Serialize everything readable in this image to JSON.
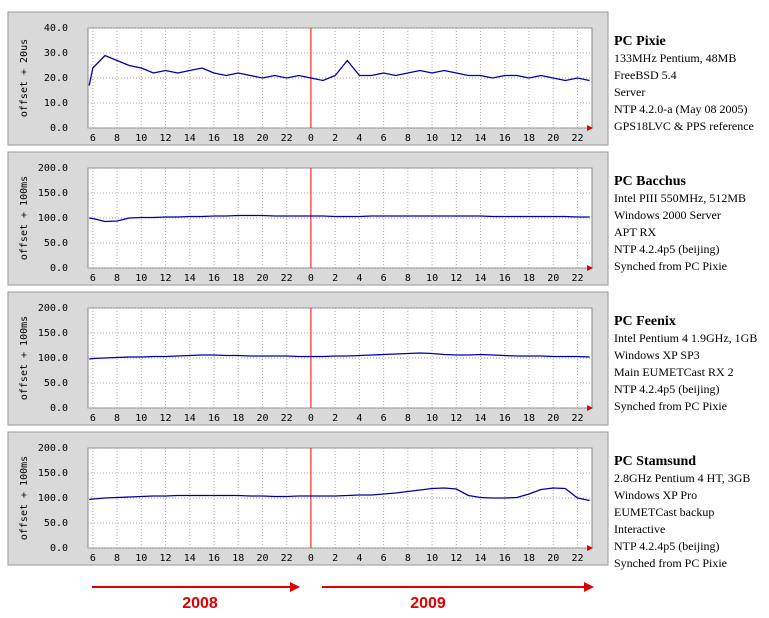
{
  "periods": [
    "2008",
    "2009"
  ],
  "chart_data": [
    {
      "type": "line",
      "title": "PC Pixie",
      "notes": [
        "133MHz Pentium, 48MB",
        "FreeBSD 5.4",
        "Server",
        "NTP 4.2.0-a (May 08 2005)",
        "GPS18LVC & PPS reference"
      ],
      "ylabel": "offset + 20us",
      "x": [
        5.7,
        6,
        7,
        8,
        9,
        10,
        11,
        12,
        13,
        14,
        15,
        16,
        17,
        18,
        19,
        20,
        21,
        22,
        23,
        24,
        25,
        26,
        27,
        28,
        29,
        30,
        31,
        32,
        33,
        34,
        35,
        36,
        37,
        38,
        39,
        40,
        41,
        42,
        43,
        44,
        45,
        46,
        47
      ],
      "series": [
        {
          "color": "#0000aa",
          "values": [
            17,
            24,
            29,
            27,
            25,
            24,
            22,
            23,
            22,
            23,
            24,
            22,
            21,
            22,
            21,
            20,
            21,
            20,
            21,
            20,
            19,
            21,
            27,
            21,
            21,
            22,
            21,
            22,
            23,
            22,
            23,
            22,
            21,
            21,
            20,
            21,
            21,
            20,
            21,
            20,
            19,
            20,
            19
          ]
        }
      ],
      "xlim": [
        5.6,
        47.2
      ],
      "xticks": [
        6,
        8,
        10,
        12,
        14,
        16,
        18,
        20,
        22,
        {
          "value": 24,
          "label": "0"
        },
        {
          "value": 26,
          "label": "2"
        },
        {
          "value": 28,
          "label": "4"
        },
        {
          "value": 30,
          "label": "6"
        },
        {
          "value": 32,
          "label": "8"
        },
        {
          "value": 34,
          "label": "10"
        },
        {
          "value": 36,
          "label": "12"
        },
        {
          "value": 38,
          "label": "14"
        },
        {
          "value": 40,
          "label": "16"
        },
        {
          "value": 42,
          "label": "18"
        },
        {
          "value": 44,
          "label": "20"
        },
        {
          "value": 46,
          "label": "22"
        }
      ],
      "ylim": [
        0,
        40
      ],
      "yticks": [
        {
          "value": 0,
          "label": "0.0"
        },
        {
          "value": 10,
          "label": "10.0"
        },
        {
          "value": 20,
          "label": "20.0"
        },
        {
          "value": 30,
          "label": "30.0"
        },
        {
          "value": 40,
          "label": "40.0"
        }
      ],
      "grid": true,
      "vline": 24,
      "vline_color": "#ff0000"
    },
    {
      "type": "line",
      "title": "PC Bacchus",
      "notes": [
        "Intel PIII 550MHz, 512MB",
        "Windows 2000 Server",
        "APT RX",
        "NTP 4.2.4p5 (beijing)",
        "Synched from PC Pixie"
      ],
      "ylabel": "offset + 100ms",
      "x": [
        5.7,
        6,
        7,
        8,
        9,
        10,
        11,
        12,
        13,
        14,
        15,
        16,
        17,
        18,
        19,
        20,
        21,
        22,
        23,
        24,
        25,
        26,
        27,
        28,
        29,
        30,
        31,
        32,
        33,
        34,
        35,
        36,
        37,
        38,
        39,
        40,
        41,
        42,
        43,
        44,
        45,
        46,
        47
      ],
      "series": [
        {
          "color": "#0000aa",
          "values": [
            100,
            99,
            93,
            94,
            100,
            101,
            101,
            102,
            102,
            103,
            103,
            104,
            104,
            105,
            105,
            105,
            104,
            104,
            104,
            104,
            104,
            103,
            103,
            103,
            104,
            104,
            104,
            104,
            104,
            104,
            104,
            104,
            104,
            104,
            103,
            103,
            103,
            103,
            103,
            103,
            103,
            102,
            102
          ]
        }
      ],
      "xlim": [
        5.6,
        47.2
      ],
      "xticks": [
        6,
        8,
        10,
        12,
        14,
        16,
        18,
        20,
        22,
        {
          "value": 24,
          "label": "0"
        },
        {
          "value": 26,
          "label": "2"
        },
        {
          "value": 28,
          "label": "4"
        },
        {
          "value": 30,
          "label": "6"
        },
        {
          "value": 32,
          "label": "8"
        },
        {
          "value": 34,
          "label": "10"
        },
        {
          "value": 36,
          "label": "12"
        },
        {
          "value": 38,
          "label": "14"
        },
        {
          "value": 40,
          "label": "16"
        },
        {
          "value": 42,
          "label": "18"
        },
        {
          "value": 44,
          "label": "20"
        },
        {
          "value": 46,
          "label": "22"
        }
      ],
      "ylim": [
        0,
        200
      ],
      "yticks": [
        {
          "value": 0,
          "label": "0.0"
        },
        {
          "value": 50,
          "label": "50.0"
        },
        {
          "value": 100,
          "label": "100.0"
        },
        {
          "value": 150,
          "label": "150.0"
        },
        {
          "value": 200,
          "label": "200.0"
        }
      ],
      "grid": true,
      "vline": 24,
      "vline_color": "#ff0000"
    },
    {
      "type": "line",
      "title": "PC Feenix",
      "notes": [
        "Intel Pentium 4 1.9GHz, 1GB",
        "Windows XP SP3",
        "Main EUMETCast RX 2",
        "NTP 4.2.4p5 (beijing)",
        "Synched from PC Pixie"
      ],
      "ylabel": "offset + 100ms",
      "x": [
        5.7,
        6,
        7,
        8,
        9,
        10,
        11,
        12,
        13,
        14,
        15,
        16,
        17,
        18,
        19,
        20,
        21,
        22,
        23,
        24,
        25,
        26,
        27,
        28,
        29,
        30,
        31,
        32,
        33,
        34,
        35,
        36,
        37,
        38,
        39,
        40,
        41,
        42,
        43,
        44,
        45,
        46,
        47
      ],
      "series": [
        {
          "color": "#0000aa",
          "values": [
            98,
            99,
            100,
            101,
            102,
            102,
            103,
            103,
            104,
            105,
            106,
            106,
            105,
            105,
            104,
            104,
            104,
            104,
            103,
            103,
            103,
            104,
            104,
            105,
            106,
            107,
            108,
            109,
            110,
            109,
            107,
            106,
            106,
            107,
            106,
            105,
            104,
            104,
            104,
            103,
            103,
            103,
            102
          ]
        }
      ],
      "xlim": [
        5.6,
        47.2
      ],
      "xticks": [
        6,
        8,
        10,
        12,
        14,
        16,
        18,
        20,
        22,
        {
          "value": 24,
          "label": "0"
        },
        {
          "value": 26,
          "label": "2"
        },
        {
          "value": 28,
          "label": "4"
        },
        {
          "value": 30,
          "label": "6"
        },
        {
          "value": 32,
          "label": "8"
        },
        {
          "value": 34,
          "label": "10"
        },
        {
          "value": 36,
          "label": "12"
        },
        {
          "value": 38,
          "label": "14"
        },
        {
          "value": 40,
          "label": "16"
        },
        {
          "value": 42,
          "label": "18"
        },
        {
          "value": 44,
          "label": "20"
        },
        {
          "value": 46,
          "label": "22"
        }
      ],
      "ylim": [
        0,
        200
      ],
      "yticks": [
        {
          "value": 0,
          "label": "0.0"
        },
        {
          "value": 50,
          "label": "50.0"
        },
        {
          "value": 100,
          "label": "100.0"
        },
        {
          "value": 150,
          "label": "150.0"
        },
        {
          "value": 200,
          "label": "200.0"
        }
      ],
      "grid": true,
      "vline": 24,
      "vline_color": "#ff0000"
    },
    {
      "type": "line",
      "title": "PC Stamsund",
      "notes": [
        "2.8GHz Pentium 4 HT, 3GB",
        "Windows XP Pro",
        "EUMETCast backup",
        "Interactive",
        "NTP 4.2.4p5 (beijing)",
        "Synched from PC Pixie"
      ],
      "ylabel": "offset + 100ms",
      "x": [
        5.7,
        6,
        7,
        8,
        9,
        10,
        11,
        12,
        13,
        14,
        15,
        16,
        17,
        18,
        19,
        20,
        21,
        22,
        23,
        24,
        25,
        26,
        27,
        28,
        29,
        30,
        31,
        32,
        33,
        34,
        35,
        36,
        37,
        38,
        39,
        40,
        41,
        42,
        43,
        44,
        45,
        46,
        47
      ],
      "series": [
        {
          "color": "#0000aa",
          "values": [
            97,
            98,
            100,
            101,
            102,
            103,
            104,
            104,
            105,
            105,
            105,
            105,
            105,
            105,
            104,
            104,
            103,
            103,
            104,
            104,
            104,
            104,
            105,
            106,
            106,
            108,
            110,
            113,
            116,
            119,
            120,
            118,
            105,
            101,
            100,
            100,
            101,
            108,
            117,
            120,
            119,
            100,
            95
          ]
        }
      ],
      "xlim": [
        5.6,
        47.2
      ],
      "xticks": [
        6,
        8,
        10,
        12,
        14,
        16,
        18,
        20,
        22,
        {
          "value": 24,
          "label": "0"
        },
        {
          "value": 26,
          "label": "2"
        },
        {
          "value": 28,
          "label": "4"
        },
        {
          "value": 30,
          "label": "6"
        },
        {
          "value": 32,
          "label": "8"
        },
        {
          "value": 34,
          "label": "10"
        },
        {
          "value": 36,
          "label": "12"
        },
        {
          "value": 38,
          "label": "14"
        },
        {
          "value": 40,
          "label": "16"
        },
        {
          "value": 42,
          "label": "18"
        },
        {
          "value": 44,
          "label": "20"
        },
        {
          "value": 46,
          "label": "22"
        }
      ],
      "ylim": [
        0,
        200
      ],
      "yticks": [
        {
          "value": 0,
          "label": "0.0"
        },
        {
          "value": 50,
          "label": "50.0"
        },
        {
          "value": 100,
          "label": "100.0"
        },
        {
          "value": 150,
          "label": "150.0"
        },
        {
          "value": 200,
          "label": "200.0"
        }
      ],
      "grid": true,
      "vline": 24,
      "vline_color": "#ff0000"
    }
  ]
}
